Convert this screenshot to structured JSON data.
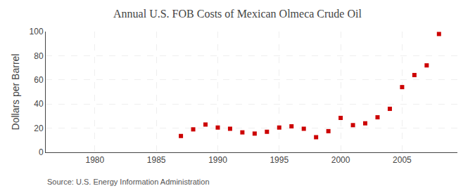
{
  "chart_data": {
    "type": "scatter",
    "title": "Annual U.S. FOB Costs of Mexican Olmeca Crude Oil",
    "ylabel": "Dollars per Barrel",
    "annotations": [
      "Source: U.S. Energy Information Administration"
    ],
    "x": [
      1987,
      1988,
      1989,
      1990,
      1991,
      1992,
      1993,
      1994,
      1995,
      1996,
      1997,
      1998,
      1999,
      2000,
      2001,
      2002,
      2003,
      2004,
      2005,
      2006,
      2007,
      2008
    ],
    "values": [
      13.5,
      19.0,
      23.0,
      20.5,
      19.5,
      16.5,
      15.5,
      17.0,
      20.5,
      21.5,
      19.5,
      12.5,
      17.5,
      28.5,
      22.5,
      24.0,
      29.0,
      36.0,
      54.0,
      64.0,
      72.0,
      98.0
    ],
    "color": "#cc0000",
    "marker": "square",
    "xlim": [
      1976,
      2009.5
    ],
    "xticks": [
      1980,
      1985,
      1990,
      1995,
      2000,
      2005
    ],
    "ylim": [
      0,
      100
    ],
    "yticks": [
      0,
      20,
      40,
      60,
      80,
      100
    ],
    "grid": true
  }
}
